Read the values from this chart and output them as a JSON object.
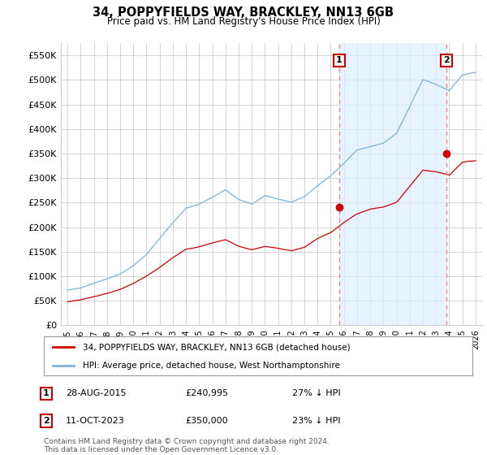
{
  "title": "34, POPPYFIELDS WAY, BRACKLEY, NN13 6GB",
  "subtitle": "Price paid vs. HM Land Registry's House Price Index (HPI)",
  "ylim": [
    0,
    575000
  ],
  "yticks": [
    0,
    50000,
    100000,
    150000,
    200000,
    250000,
    300000,
    350000,
    400000,
    450000,
    500000,
    550000
  ],
  "ytick_labels": [
    "£0",
    "£50K",
    "£100K",
    "£150K",
    "£200K",
    "£250K",
    "£300K",
    "£350K",
    "£400K",
    "£450K",
    "£500K",
    "£550K"
  ],
  "background_color": "#ffffff",
  "grid_color": "#cccccc",
  "hpi_color": "#7ab3d9",
  "price_color": "#cc0000",
  "vline_color": "#ee8888",
  "fill_color": "#ddeeff",
  "legend_label_red": "34, POPPYFIELDS WAY, BRACKLEY, NN13 6GB (detached house)",
  "legend_label_blue": "HPI: Average price, detached house, West Northamptonshire",
  "transaction1_date": "28-AUG-2015",
  "transaction1_price": "£240,995",
  "transaction1_hpi": "27% ↓ HPI",
  "transaction2_date": "11-OCT-2023",
  "transaction2_price": "£350,000",
  "transaction2_hpi": "23% ↓ HPI",
  "footnote1": "Contains HM Land Registry data © Crown copyright and database right 2024.",
  "footnote2": "This data is licensed under the Open Government Licence v3.0.",
  "transaction1_x": 2015.65,
  "transaction1_y": 240995,
  "transaction2_x": 2023.78,
  "transaction2_y": 350000,
  "vline1_x": 2015.65,
  "vline2_x": 2023.78,
  "xlim": [
    1994.5,
    2026.5
  ],
  "xticks": [
    1995,
    1996,
    1997,
    1998,
    1999,
    2000,
    2001,
    2002,
    2003,
    2004,
    2005,
    2006,
    2007,
    2008,
    2009,
    2010,
    2011,
    2012,
    2013,
    2014,
    2015,
    2016,
    2017,
    2018,
    2019,
    2020,
    2021,
    2022,
    2023,
    2024,
    2025,
    2026
  ]
}
